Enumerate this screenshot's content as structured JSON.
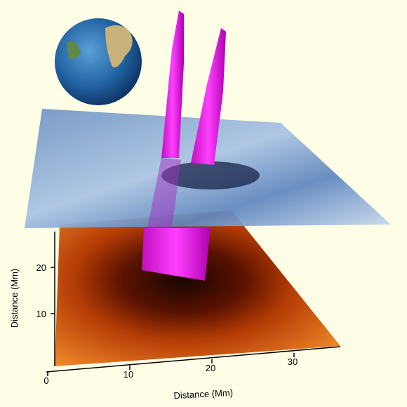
{
  "x_axis": {
    "label": "Distance (Mm)",
    "ticks": [
      0,
      10,
      20,
      30
    ]
  },
  "y_axis": {
    "label": "Distance (Mm)",
    "ticks": [
      10,
      20
    ]
  }
}
